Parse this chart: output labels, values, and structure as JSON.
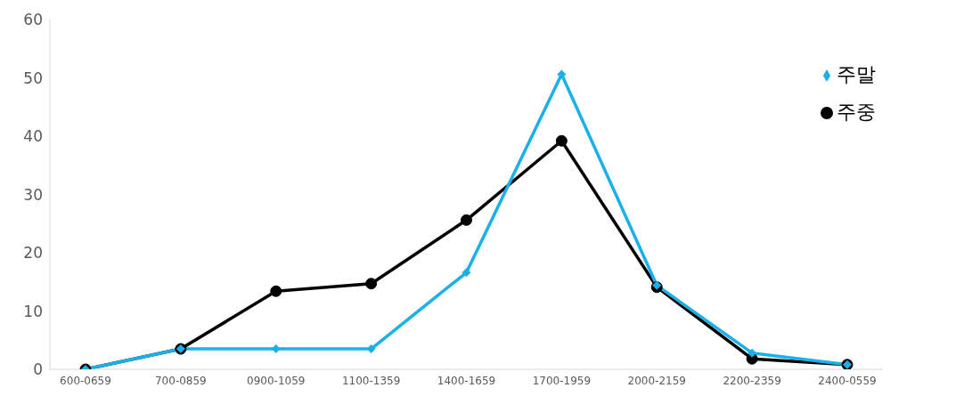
{
  "chart_data": {
    "type": "line",
    "categories": [
      "600-0659",
      "700-0859",
      "0900-1059",
      "1100-1359",
      "1400-1659",
      "1700-1959",
      "2000-2159",
      "2200-2359",
      "2400-0559"
    ],
    "series": [
      {
        "name": "주중",
        "color": "#000000",
        "marker": "circle",
        "values": [
          0,
          3.5,
          13.4,
          14.7,
          25.6,
          39.2,
          14.1,
          1.8,
          0.8
        ]
      },
      {
        "name": "주말",
        "color": "#1ab0e8",
        "marker": "diamond",
        "values": [
          0,
          3.5,
          3.5,
          3.5,
          16.6,
          50.6,
          14.4,
          2.8,
          0.8
        ]
      }
    ],
    "ylim": [
      0,
      60
    ],
    "yticks": [
      0,
      10,
      20,
      30,
      40,
      50,
      60
    ],
    "grid": false,
    "legend": "top right"
  }
}
